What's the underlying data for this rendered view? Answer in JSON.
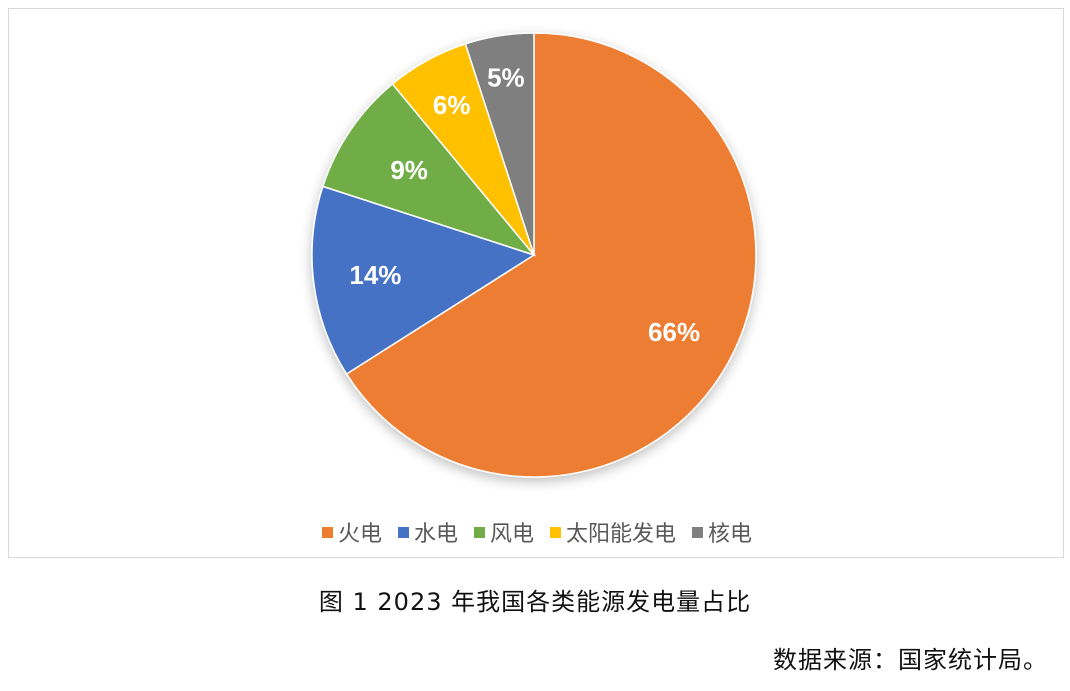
{
  "chart_data": {
    "type": "pie",
    "categories": [
      "火电",
      "水电",
      "风电",
      "太阳能发电",
      "核电"
    ],
    "values": [
      66,
      14,
      9,
      6,
      5
    ],
    "data_labels": [
      "66%",
      "14%",
      "9%",
      "6%",
      "5%"
    ],
    "colors": [
      "#ED7D31",
      "#4472C4",
      "#70AD47",
      "#FFC000",
      "#7F7F7F"
    ],
    "legend_position": "bottom"
  },
  "caption": "图 1   2023 年我国各类能源发电量占比",
  "source": "数据来源：国家统计局。"
}
